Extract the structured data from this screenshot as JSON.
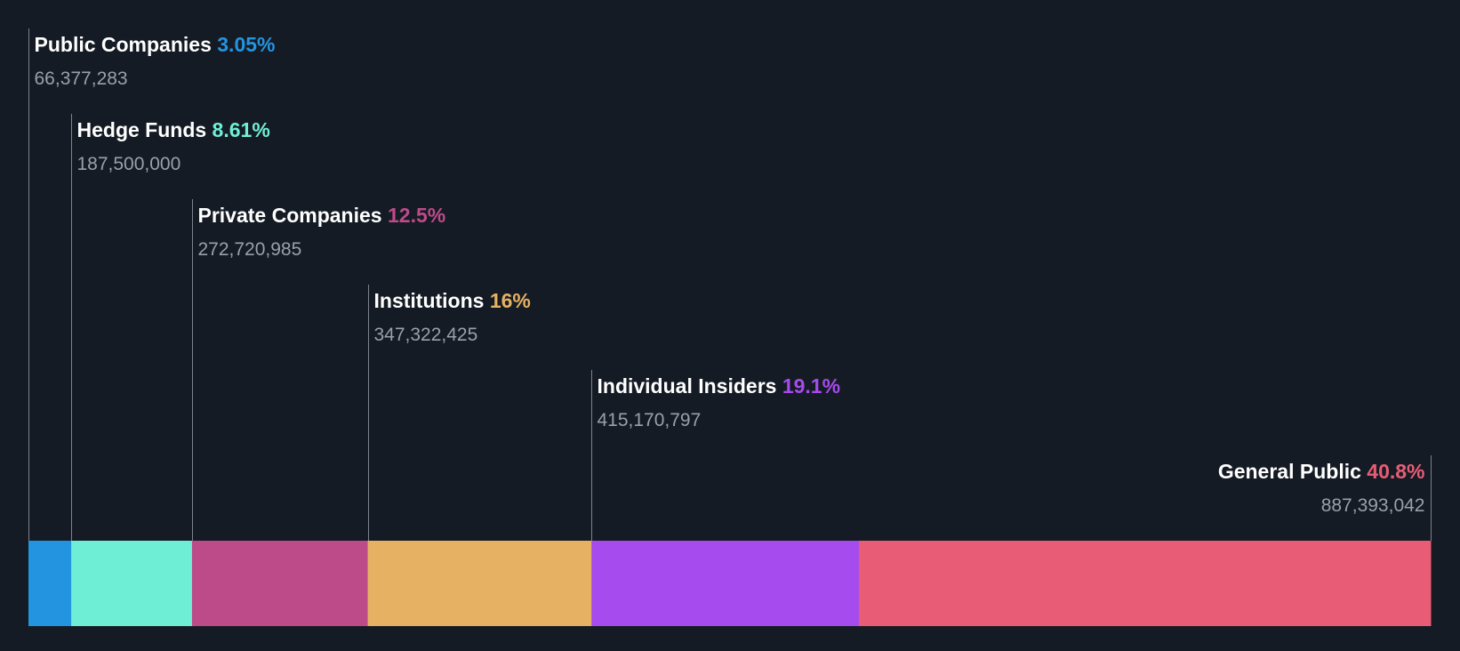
{
  "chart_data": {
    "type": "bar",
    "orientation": "horizontal-stacked",
    "title": "",
    "xlabel": "",
    "ylabel": "",
    "grid": false,
    "legend": "none",
    "segments": [
      {
        "name": "Public Companies",
        "percent_label": "3.05%",
        "percent": 3.05,
        "shares_label": "66,377,283",
        "shares": 66377283,
        "color": "#2394e0"
      },
      {
        "name": "Hedge Funds",
        "percent_label": "8.61%",
        "percent": 8.61,
        "shares_label": "187,500,000",
        "shares": 187500000,
        "color": "#6feed6"
      },
      {
        "name": "Private Companies",
        "percent_label": "12.5%",
        "percent": 12.5,
        "shares_label": "272,720,985",
        "shares": 272720985,
        "color": "#bd4b8a"
      },
      {
        "name": "Institutions",
        "percent_label": "16%",
        "percent": 16.0,
        "shares_label": "347,322,425",
        "shares": 347322425,
        "color": "#e6b163"
      },
      {
        "name": "Individual Insiders",
        "percent_label": "19.1%",
        "percent": 19.1,
        "shares_label": "415,170,797",
        "shares": 415170797,
        "color": "#a64bed"
      },
      {
        "name": "General Public",
        "percent_label": "40.8%",
        "percent": 40.8,
        "shares_label": "887,393,042",
        "shares": 887393042,
        "color": "#e85d75"
      }
    ]
  }
}
